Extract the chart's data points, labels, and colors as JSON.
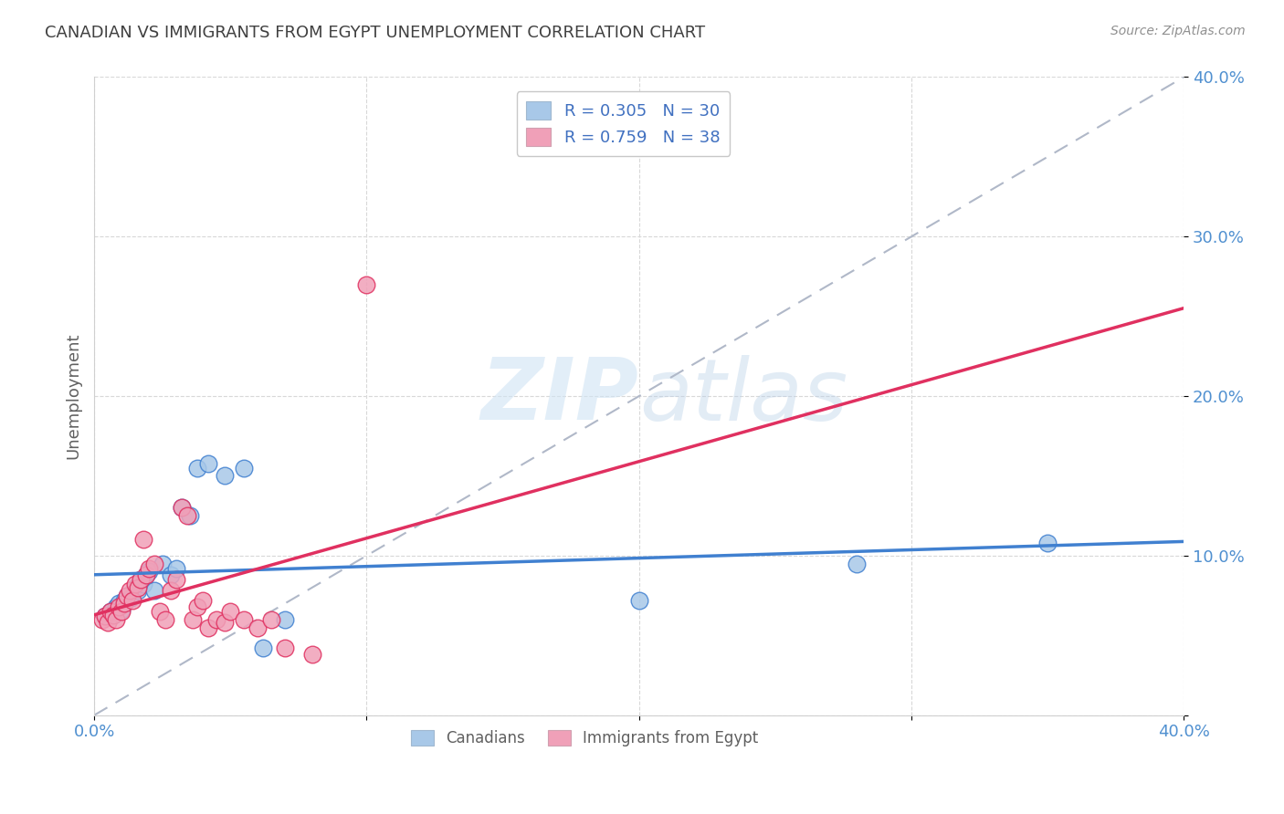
{
  "title": "CANADIAN VS IMMIGRANTS FROM EGYPT UNEMPLOYMENT CORRELATION CHART",
  "source": "Source: ZipAtlas.com",
  "ylabel": "Unemployment",
  "xlim": [
    0.0,
    0.4
  ],
  "ylim": [
    0.0,
    0.4
  ],
  "x_ticks": [
    0.0,
    0.1,
    0.2,
    0.3,
    0.4
  ],
  "y_ticks": [
    0.0,
    0.1,
    0.2,
    0.3,
    0.4
  ],
  "x_tick_labels": [
    "0.0%",
    "",
    "",
    "",
    "40.0%"
  ],
  "y_tick_labels": [
    "",
    "10.0%",
    "20.0%",
    "30.0%",
    "40.0%"
  ],
  "canadians_color": "#a8c8e8",
  "egypt_color": "#f0a0b8",
  "trendline_canadian_color": "#4080d0",
  "trendline_egypt_color": "#e03060",
  "diagonal_color": "#b0b8c8",
  "R_canadian": 0.305,
  "N_canadian": 30,
  "R_egypt": 0.759,
  "N_egypt": 38,
  "canadians_x": [
    0.004,
    0.006,
    0.007,
    0.008,
    0.009,
    0.01,
    0.011,
    0.012,
    0.013,
    0.015,
    0.016,
    0.017,
    0.018,
    0.019,
    0.02,
    0.022,
    0.025,
    0.028,
    0.03,
    0.032,
    0.035,
    0.038,
    0.042,
    0.048,
    0.055,
    0.062,
    0.07,
    0.2,
    0.28,
    0.35
  ],
  "canadians_y": [
    0.062,
    0.065,
    0.063,
    0.068,
    0.07,
    0.066,
    0.072,
    0.075,
    0.073,
    0.08,
    0.078,
    0.085,
    0.082,
    0.088,
    0.09,
    0.078,
    0.095,
    0.088,
    0.092,
    0.13,
    0.125,
    0.155,
    0.158,
    0.15,
    0.155,
    0.042,
    0.06,
    0.072,
    0.095,
    0.108
  ],
  "egypt_x": [
    0.003,
    0.004,
    0.005,
    0.006,
    0.007,
    0.008,
    0.009,
    0.01,
    0.011,
    0.012,
    0.013,
    0.014,
    0.015,
    0.016,
    0.017,
    0.018,
    0.019,
    0.02,
    0.022,
    0.024,
    0.026,
    0.028,
    0.03,
    0.032,
    0.034,
    0.036,
    0.038,
    0.04,
    0.042,
    0.045,
    0.048,
    0.05,
    0.055,
    0.06,
    0.065,
    0.07,
    0.08,
    0.1
  ],
  "egypt_y": [
    0.06,
    0.062,
    0.058,
    0.065,
    0.063,
    0.06,
    0.068,
    0.065,
    0.07,
    0.075,
    0.078,
    0.072,
    0.082,
    0.08,
    0.085,
    0.11,
    0.088,
    0.092,
    0.095,
    0.065,
    0.06,
    0.078,
    0.085,
    0.13,
    0.125,
    0.06,
    0.068,
    0.072,
    0.055,
    0.06,
    0.058,
    0.065,
    0.06,
    0.055,
    0.06,
    0.042,
    0.038,
    0.27
  ],
  "watermark_zip": "ZIP",
  "watermark_atlas": "atlas",
  "background_color": "#ffffff",
  "grid_color": "#d8d8d8",
  "title_color": "#404040",
  "tick_label_color": "#5090d0",
  "legend_label_color": "#4070c0"
}
